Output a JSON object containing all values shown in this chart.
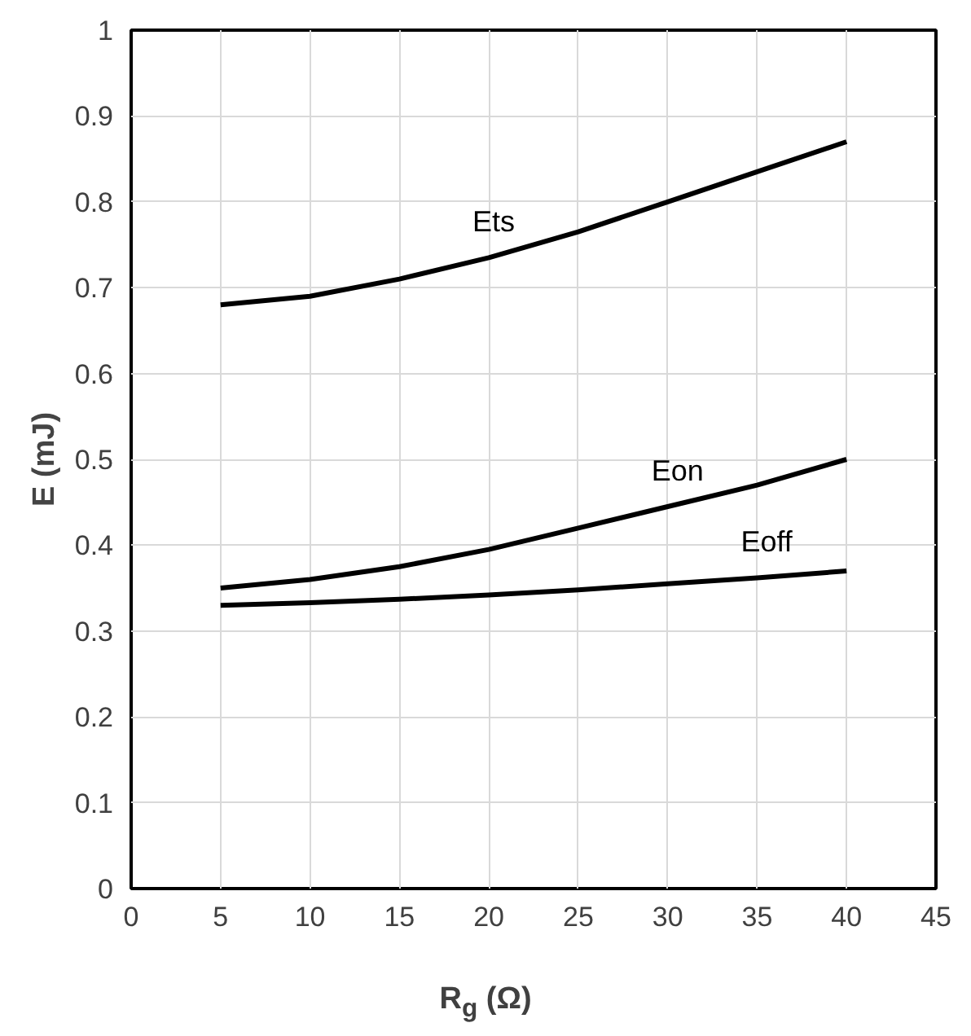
{
  "chart_data": {
    "type": "line",
    "xlabel": "R$_{g}$ (Ω)",
    "ylabel": "E (mJ)",
    "x": [
      5,
      10,
      15,
      20,
      25,
      30,
      35,
      40
    ],
    "series": [
      {
        "name": "Ets",
        "color": "#000000",
        "values": [
          0.68,
          0.69,
          0.71,
          0.735,
          0.765,
          0.8,
          0.835,
          0.87
        ]
      },
      {
        "name": "Eon",
        "color": "#000000",
        "values": [
          0.35,
          0.36,
          0.375,
          0.395,
          0.42,
          0.445,
          0.47,
          0.5
        ]
      },
      {
        "name": "Eoff",
        "color": "#000000",
        "values": [
          0.33,
          0.333,
          0.337,
          0.342,
          0.348,
          0.355,
          0.362,
          0.37
        ]
      }
    ],
    "xlim": [
      0,
      45
    ],
    "xticks": [
      0,
      5,
      10,
      15,
      20,
      25,
      30,
      35,
      40,
      45
    ],
    "ylim": [
      0,
      1
    ],
    "yticks": [
      0,
      0.1,
      0.2,
      0.3,
      0.4,
      0.5,
      0.6,
      0.7,
      0.8,
      0.9,
      1
    ],
    "grid": true,
    "marker": "none",
    "line_style": "solid"
  }
}
